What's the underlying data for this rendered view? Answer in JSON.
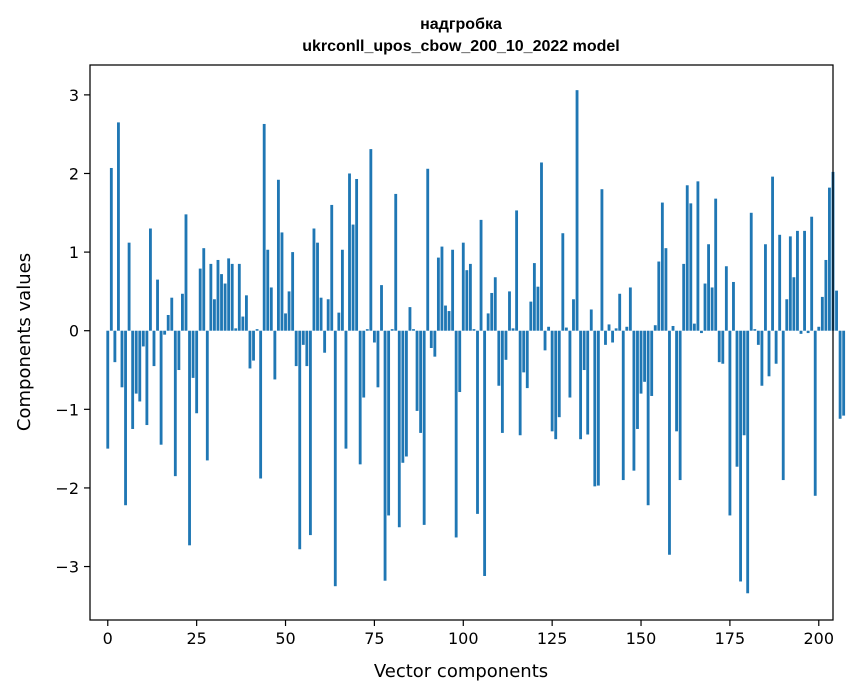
{
  "chart_data": {
    "type": "bar",
    "title_lines": [
      "надгробка",
      "ukrconll_upos_cbow_200_10_2022 model"
    ],
    "xlabel": "Vector components",
    "ylabel": "Components values",
    "xlim": [
      -5,
      204
    ],
    "ylim": [
      -3.68,
      3.38
    ],
    "xticks": [
      0,
      25,
      50,
      75,
      100,
      125,
      150,
      175,
      200
    ],
    "yticks": [
      -3,
      -2,
      -1,
      0,
      1,
      2,
      3
    ],
    "xtick_labels": [
      "0",
      "25",
      "50",
      "75",
      "100",
      "125",
      "150",
      "175",
      "200"
    ],
    "ytick_labels": [
      "−3",
      "−2",
      "−1",
      "0",
      "1",
      "2",
      "3"
    ],
    "bar_color": "#1f77b4",
    "values": [
      -1.5,
      2.07,
      -0.4,
      2.65,
      -0.72,
      -2.22,
      1.12,
      -1.25,
      -0.8,
      -0.9,
      -0.2,
      -1.2,
      1.3,
      -0.45,
      0.65,
      -1.45,
      -0.05,
      0.2,
      0.42,
      -1.85,
      -0.5,
      0.47,
      1.48,
      -2.73,
      -0.6,
      -1.05,
      0.79,
      1.05,
      -1.65,
      0.85,
      0.4,
      0.9,
      0.72,
      0.6,
      0.92,
      0.85,
      0.03,
      0.85,
      0.18,
      0.45,
      -0.48,
      -0.38,
      0.02,
      -1.88,
      2.63,
      1.03,
      0.55,
      -0.62,
      1.92,
      1.25,
      0.22,
      0.5,
      1.0,
      -0.45,
      -2.78,
      -0.18,
      -0.45,
      -2.6,
      1.3,
      1.12,
      0.42,
      -0.28,
      0.4,
      1.6,
      -3.25,
      0.23,
      1.03,
      -1.5,
      2.0,
      1.35,
      1.93,
      -1.7,
      -0.85,
      0.02,
      2.31,
      -0.15,
      -0.72,
      0.58,
      -3.18,
      -2.35,
      0.02,
      1.74,
      -2.5,
      -1.68,
      -1.6,
      0.3,
      0.02,
      -1.02,
      -1.3,
      -2.47,
      2.06,
      -0.22,
      -0.33,
      0.93,
      1.07,
      0.32,
      0.25,
      1.03,
      -2.63,
      -0.78,
      1.12,
      0.77,
      0.85,
      0.02,
      -2.33,
      1.41,
      -3.12,
      0.22,
      0.48,
      0.68,
      -0.7,
      -1.3,
      -0.37,
      0.5,
      0.03,
      1.53,
      -1.33,
      -0.53,
      -0.73,
      0.37,
      0.86,
      0.56,
      2.14,
      -0.25,
      0.05,
      -1.28,
      -1.38,
      -1.1,
      1.24,
      0.04,
      -0.85,
      0.4,
      3.06,
      -1.38,
      -0.5,
      -1.32,
      0.27,
      -1.98,
      -1.97,
      1.8,
      -0.18,
      0.08,
      -0.15,
      0.03,
      0.47,
      -1.9,
      0.05,
      0.55,
      -1.78,
      -1.25,
      -0.8,
      -0.65,
      -2.22,
      -0.83,
      0.07,
      0.88,
      1.63,
      1.05,
      -2.85,
      0.06,
      -1.28,
      -1.9,
      0.85,
      1.85,
      1.62,
      0.09,
      1.9,
      -0.03,
      0.6,
      1.1,
      0.55,
      1.68,
      -0.4,
      -0.42,
      0.82,
      -2.35,
      0.62,
      -1.73,
      -3.19,
      -1.33,
      -3.34,
      1.5,
      0.02,
      -0.18,
      -0.7,
      1.1,
      -0.58,
      1.96,
      -0.42,
      1.22,
      -1.9,
      0.4,
      1.2,
      0.68,
      1.27,
      -0.04,
      1.27,
      -0.03,
      1.45,
      -2.1,
      0.05,
      0.43,
      0.9,
      1.82,
      2.02,
      0.51,
      -1.12,
      -1.08
    ]
  }
}
